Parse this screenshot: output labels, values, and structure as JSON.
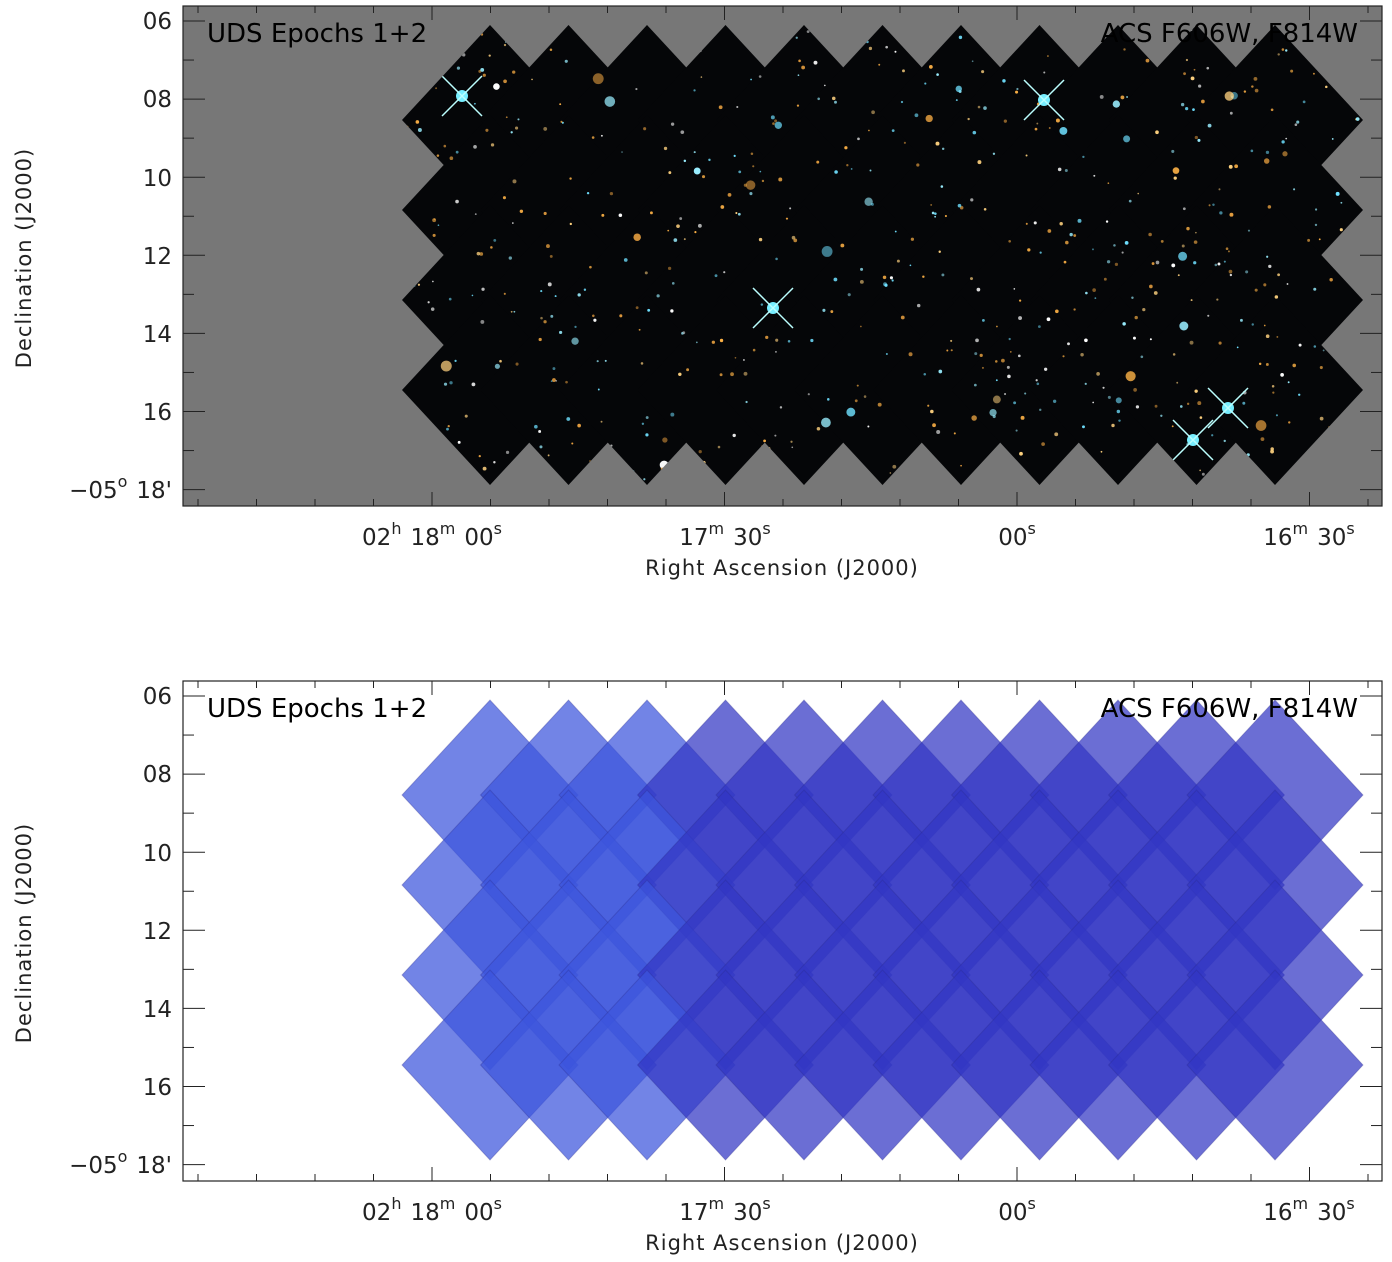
{
  "panels": [
    {
      "title_left": "UDS Epochs 1+2",
      "title_right": "ACS F606W, F814W",
      "y_label": "Declination (J2000)",
      "x_label": "Right Ascension (J2000)",
      "y_ticks": [
        [
          {
            "base": "06"
          }
        ],
        [
          {
            "base": "08"
          }
        ],
        [
          {
            "base": "10"
          }
        ],
        [
          {
            "base": "12"
          }
        ],
        [
          {
            "base": "14"
          }
        ],
        [
          {
            "base": "16"
          }
        ],
        [
          {
            "base": "−05",
            "sup": "o"
          },
          {
            "base": "18'"
          }
        ]
      ],
      "x_ticks": [
        [
          {
            "base": "02",
            "sup": "h"
          },
          {
            "base": "18",
            "sup": "m"
          },
          {
            "base": "00",
            "sup": "s"
          }
        ],
        [
          {
            "base": "17",
            "sup": "m"
          },
          {
            "base": "30",
            "sup": "s"
          }
        ],
        [
          {
            "base": "00",
            "sup": "s"
          }
        ],
        [
          {
            "base": "16",
            "sup": "m"
          },
          {
            "base": "30",
            "sup": "s"
          }
        ]
      ]
    },
    {
      "title_left": "UDS Epochs 1+2",
      "title_right": "ACS F606W, F814W",
      "y_label": "Declination (J2000)",
      "x_label": "Right Ascension (J2000)",
      "y_ticks": [
        [
          {
            "base": "06"
          }
        ],
        [
          {
            "base": "08"
          }
        ],
        [
          {
            "base": "10"
          }
        ],
        [
          {
            "base": "12"
          }
        ],
        [
          {
            "base": "14"
          }
        ],
        [
          {
            "base": "16"
          }
        ],
        [
          {
            "base": "−05",
            "sup": "o"
          },
          {
            "base": "18'"
          }
        ]
      ],
      "x_ticks": [
        [
          {
            "base": "02",
            "sup": "h"
          },
          {
            "base": "18",
            "sup": "m"
          },
          {
            "base": "00",
            "sup": "s"
          }
        ],
        [
          {
            "base": "17",
            "sup": "m"
          },
          {
            "base": "30",
            "sup": "s"
          }
        ],
        [
          {
            "base": "00",
            "sup": "s"
          }
        ],
        [
          {
            "base": "16",
            "sup": "m"
          },
          {
            "base": "30",
            "sup": "s"
          }
        ]
      ]
    }
  ]
}
